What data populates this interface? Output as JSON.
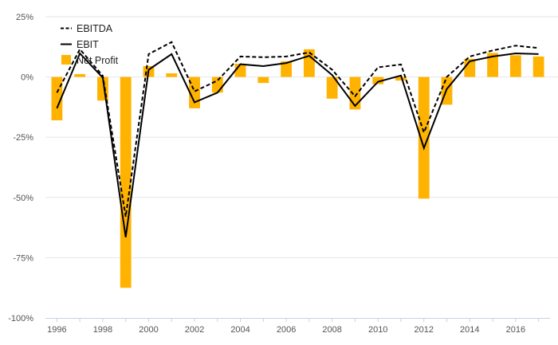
{
  "chart_data": {
    "type": "bar",
    "x": [
      1996,
      1997,
      1998,
      1999,
      2000,
      2001,
      2002,
      2003,
      2004,
      2005,
      2006,
      2007,
      2008,
      2009,
      2010,
      2011,
      2012,
      2013,
      2014,
      2015,
      2016,
      2017
    ],
    "x_tick_labels": [
      "1996",
      "1998",
      "2000",
      "2002",
      "2004",
      "2006",
      "2008",
      "2010",
      "2012",
      "2014",
      "2016"
    ],
    "ylim": [
      -100,
      25
    ],
    "y_ticks": [
      25,
      0,
      -25,
      -50,
      -75,
      -100
    ],
    "y_tick_labels": [
      "25%",
      "0%",
      "-25%",
      "-50%",
      "-75%",
      "-100%"
    ],
    "grid": true,
    "legend_position": "top-left",
    "series": [
      {
        "name": "EBITDA",
        "kind": "line",
        "style": "dashed",
        "color": "#000000",
        "values": [
          -6.5,
          11.5,
          0.5,
          -58,
          9.5,
          14.5,
          -6,
          -1.5,
          8.5,
          8.2,
          8.5,
          10.2,
          3,
          -8,
          4,
          5.2,
          -23,
          0,
          8.5,
          11,
          13,
          12
        ]
      },
      {
        "name": "EBIT",
        "kind": "line",
        "style": "solid",
        "color": "#000000",
        "values": [
          -13,
          9.8,
          -0.3,
          -66.5,
          3,
          9.5,
          -10.5,
          -6.5,
          5.3,
          4.5,
          5.8,
          8.8,
          0.8,
          -12,
          -2,
          0.6,
          -29.5,
          -5,
          6.5,
          8.5,
          9.8,
          9.5
        ]
      },
      {
        "name": "Net Profit",
        "kind": "bar",
        "color": "#FFB300",
        "values": [
          -18,
          1.2,
          -9.8,
          -87.5,
          4.5,
          1.5,
          -13,
          -6.5,
          5.5,
          -2.5,
          6.5,
          11.5,
          -9,
          -13.5,
          -3,
          -1.5,
          -50.5,
          -11.5,
          7.5,
          10,
          9,
          8.5
        ]
      }
    ]
  }
}
